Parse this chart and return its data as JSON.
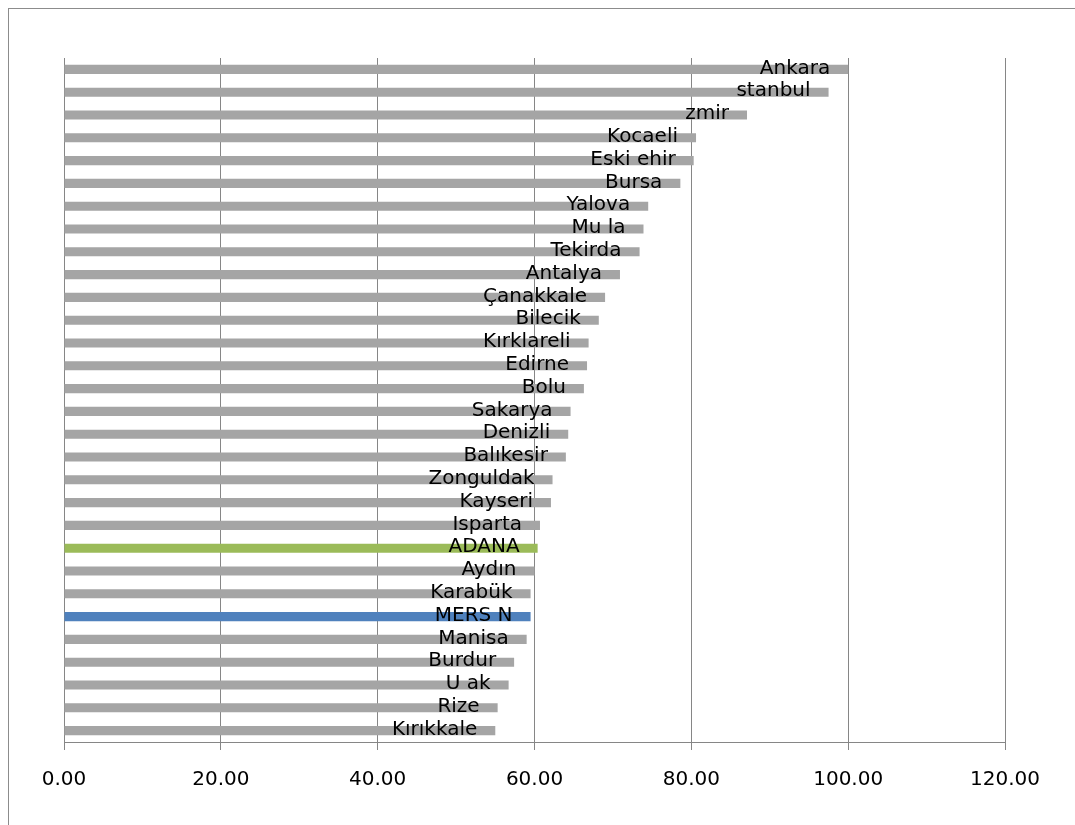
{
  "chart_data": {
    "type": "bar",
    "orientation": "horizontal",
    "categories": [
      "Ankara",
      "stanbul",
      "zmir",
      "Kocaeli",
      "Eski ehir",
      "Bursa",
      "Yalova",
      "Mu la",
      "Tekirda",
      "Antalya",
      "Çanakkale",
      "Bilecik",
      "Kırklareli",
      "Edirne",
      "Bolu",
      "Sakarya",
      "Denizli",
      "Balıkesir",
      "Zonguldak",
      "Kayseri",
      "Isparta",
      "ADANA",
      "Aydın",
      "Karabük",
      "MERS N",
      "Manisa",
      "Burdur",
      "U ak",
      "Rize",
      "Kırıkkale"
    ],
    "values": [
      100.0,
      97.5,
      87.1,
      80.6,
      80.3,
      78.6,
      74.5,
      73.9,
      73.4,
      70.9,
      69.0,
      68.2,
      66.9,
      66.7,
      66.3,
      64.6,
      64.3,
      64.0,
      62.3,
      62.1,
      60.7,
      60.4,
      60.0,
      59.5,
      59.5,
      59.0,
      57.4,
      56.7,
      55.3,
      55.0
    ],
    "colors": [
      "#a5a5a5",
      "#a5a5a5",
      "#a5a5a5",
      "#a5a5a5",
      "#a5a5a5",
      "#a5a5a5",
      "#a5a5a5",
      "#a5a5a5",
      "#a5a5a5",
      "#a5a5a5",
      "#a5a5a5",
      "#a5a5a5",
      "#a5a5a5",
      "#a5a5a5",
      "#a5a5a5",
      "#a5a5a5",
      "#a5a5a5",
      "#a5a5a5",
      "#a5a5a5",
      "#a5a5a5",
      "#a5a5a5",
      "#9bbb59",
      "#a5a5a5",
      "#a5a5a5",
      "#4f81bd",
      "#a5a5a5",
      "#a5a5a5",
      "#a5a5a5",
      "#a5a5a5",
      "#a5a5a5"
    ],
    "xlim": [
      0,
      120
    ],
    "xticks": [
      {
        "value": 0,
        "label": "0.00"
      },
      {
        "value": 20,
        "label": "20.00"
      },
      {
        "value": 40,
        "label": "40.00"
      },
      {
        "value": 60,
        "label": "60.00"
      },
      {
        "value": 80,
        "label": "80.00"
      },
      {
        "value": 100,
        "label": "100.00"
      },
      {
        "value": 120,
        "label": "120.00"
      }
    ],
    "grid": "x",
    "tick_labels": "x"
  }
}
